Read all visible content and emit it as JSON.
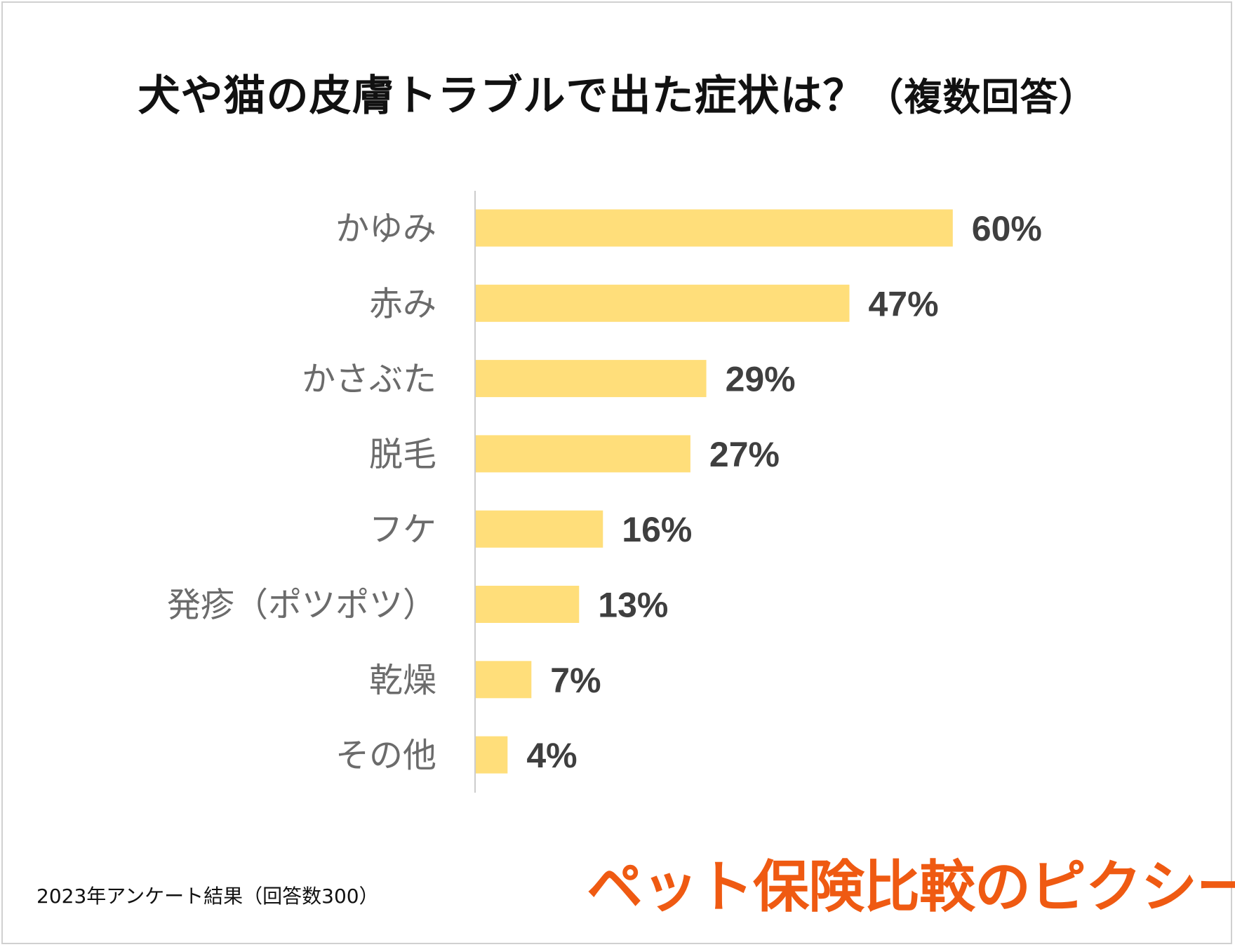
{
  "chart_data": {
    "type": "bar",
    "orientation": "horizontal",
    "title": "犬や猫の皮膚トラブルで出た症状は？",
    "subtitle": "（複数回答）",
    "categories": [
      "かゆみ",
      "赤み",
      "かさぶた",
      "脱毛",
      "フケ",
      "発疹（ポツポツ）",
      "乾燥",
      "その他"
    ],
    "values": [
      60,
      47,
      29,
      27,
      16,
      13,
      7,
      4
    ],
    "value_labels": [
      "60%",
      "47%",
      "29%",
      "27%",
      "16%",
      "13%",
      "7%",
      "4%"
    ],
    "unit": "%",
    "xlim": [
      0,
      100
    ],
    "bar_color": "#FFDE7A",
    "grid": false,
    "legend": "none"
  },
  "footnote": "2023年アンケート結果（回答数300）",
  "brand": "ペット保険比較のピクシー",
  "colors": {
    "brand": "#EF5A12",
    "bar": "#FFDE7A",
    "axis": "#CCCCCC"
  }
}
